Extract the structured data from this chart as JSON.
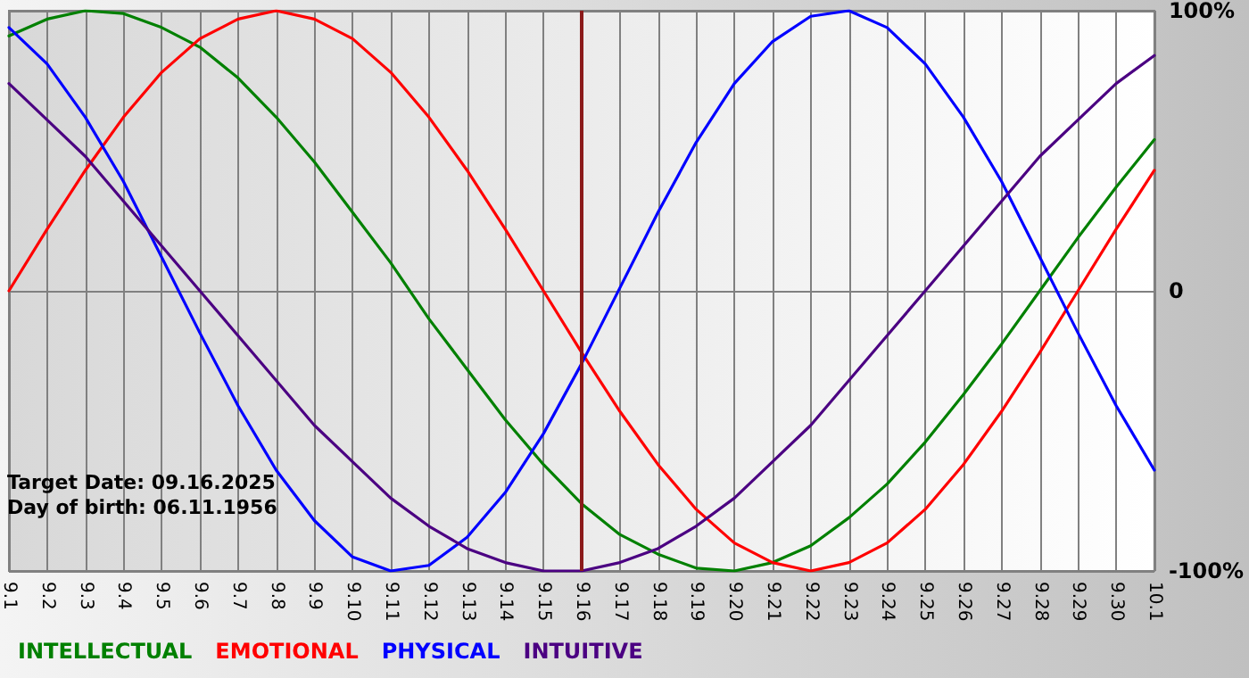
{
  "chart_data": {
    "type": "line",
    "categories": [
      "9.1",
      "9.2",
      "9.3",
      "9.4",
      "9.5",
      "9.6",
      "9.7",
      "9.8",
      "9.9",
      "9.10",
      "9.11",
      "9.12",
      "9.13",
      "9.14",
      "9.15",
      "9.16",
      "9.17",
      "9.18",
      "9.19",
      "9.20",
      "9.21",
      "9.22",
      "9.23",
      "9.24",
      "9.25",
      "9.26",
      "9.27",
      "9.28",
      "9.29",
      "9.30",
      "10.1"
    ],
    "series": [
      {
        "name": "INTELLECTUAL",
        "color": "#008000",
        "values": [
          91,
          97,
          100,
          99,
          94,
          87,
          76,
          62,
          46,
          28,
          10,
          -10,
          -28,
          -46,
          -62,
          -76,
          -87,
          -94,
          -99,
          -100,
          -97,
          -91,
          -81,
          -69,
          -54,
          -37,
          -19,
          0,
          19,
          37,
          54
        ]
      },
      {
        "name": "EMOTIONAL",
        "color": "#ff0000",
        "values": [
          0,
          22,
          43,
          62,
          78,
          90,
          97,
          100,
          97,
          90,
          78,
          62,
          43,
          22,
          0,
          -22,
          -43,
          -62,
          -78,
          -90,
          -97,
          -100,
          -97,
          -90,
          -78,
          -62,
          -43,
          -22,
          0,
          22,
          43
        ]
      },
      {
        "name": "PHYSICAL",
        "color": "#0000ff",
        "values": [
          94,
          81,
          62,
          39,
          12,
          -15,
          -41,
          -64,
          -82,
          -95,
          -100,
          -98,
          -88,
          -72,
          -51,
          -26,
          1,
          28,
          53,
          74,
          89,
          98,
          100,
          94,
          81,
          62,
          39,
          12,
          -15,
          -41,
          -64
        ]
      },
      {
        "name": "INTUITIVE",
        "color": "#4b0082",
        "values": [
          74,
          61,
          48,
          32,
          16,
          0,
          -16,
          -32,
          -48,
          -61,
          -74,
          -84,
          -92,
          -97,
          -100,
          -100,
          -97,
          -92,
          -84,
          -74,
          -61,
          -48,
          -32,
          -16,
          0,
          16,
          32,
          48,
          61,
          74,
          84
        ]
      }
    ],
    "ylim": [
      -100,
      100
    ],
    "yticks": [
      {
        "value": -100,
        "label": "-100%"
      },
      {
        "value": 0,
        "label": "0"
      },
      {
        "value": 100,
        "label": "100%"
      }
    ],
    "ref_lines": [
      {
        "axis": "x",
        "value": "9.16",
        "color": "#8b1a1a"
      }
    ],
    "annotations": [
      "Target Date: 09.16.2025",
      "Day of birth: 06.11.1956"
    ],
    "grid": true,
    "legend": "bottom left",
    "marker": "none",
    "line_style": "solid"
  }
}
